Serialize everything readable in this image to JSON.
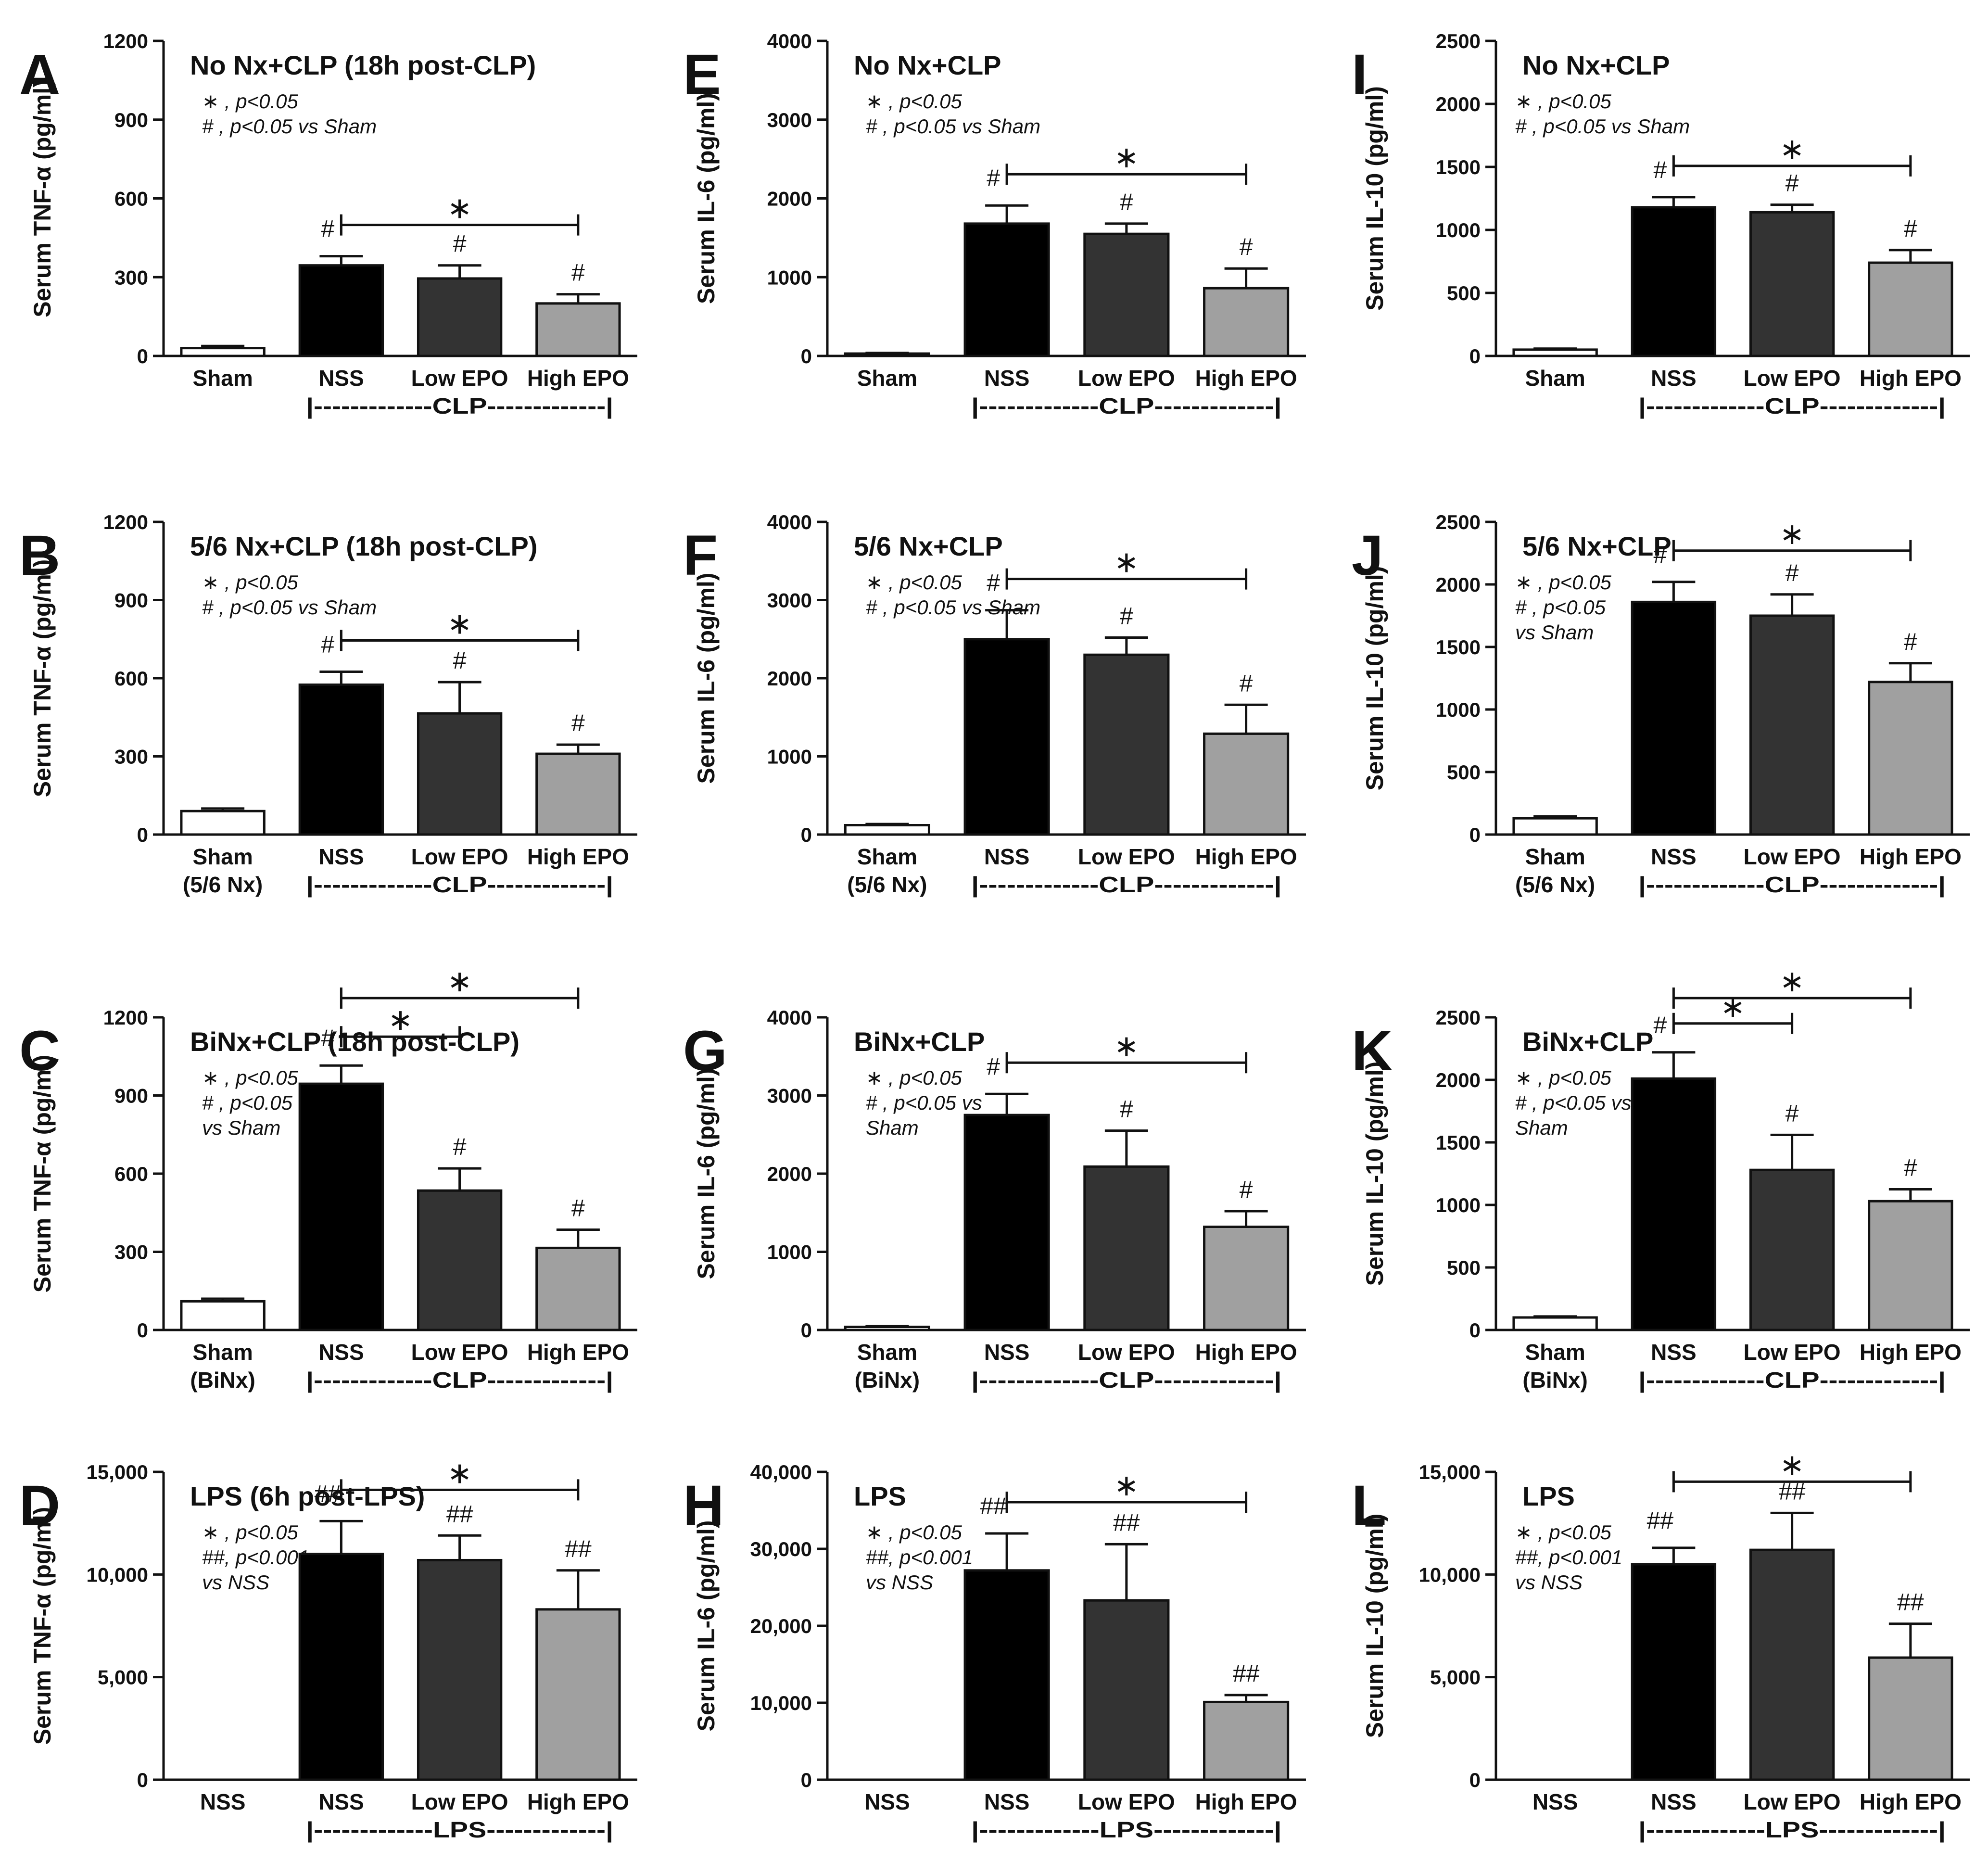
{
  "chart_data": [
    {
      "panel": "A",
      "type": "bar",
      "title": "No Nx+CLP (18h post-CLP)",
      "ylabel": "Serum TNF-α (pg/ml)",
      "ylim": [
        0,
        1200
      ],
      "yticks": [
        "0",
        "300",
        "600",
        "900",
        "1200"
      ],
      "categories": [
        [
          "Sham"
        ],
        [
          "NSS"
        ],
        [
          "Low EPO"
        ],
        [
          "High EPO"
        ]
      ],
      "values": [
        30,
        345,
        295,
        200
      ],
      "errors": [
        8,
        35,
        50,
        35
      ],
      "colors": [
        "#ffffff",
        "#000000",
        "#333333",
        "#a0a0a0"
      ],
      "group_label": "|-------------CLP-------------|",
      "notes": [
        "∗ , p<0.05",
        "# , p<0.05 vs Sham"
      ],
      "bar_marks": [
        "",
        "#",
        "#",
        "#"
      ],
      "brackets": [
        {
          "from": 1,
          "to": 3,
          "label": "∗",
          "level": 1
        }
      ]
    },
    {
      "panel": "B",
      "type": "bar",
      "title": "5/6 Nx+CLP (18h post-CLP)",
      "ylabel": "Serum TNF-α (pg/ml)",
      "ylim": [
        0,
        1200
      ],
      "yticks": [
        "0",
        "300",
        "600",
        "900",
        "1200"
      ],
      "categories": [
        [
          "Sham",
          "(5/6 Nx)"
        ],
        [
          "NSS"
        ],
        [
          "Low EPO"
        ],
        [
          "High EPO"
        ]
      ],
      "values": [
        90,
        575,
        465,
        310
      ],
      "errors": [
        10,
        50,
        120,
        35
      ],
      "colors": [
        "#ffffff",
        "#000000",
        "#333333",
        "#a0a0a0"
      ],
      "group_label": "|-------------CLP-------------|",
      "notes": [
        "∗ , p<0.05",
        "# , p<0.05 vs Sham"
      ],
      "bar_marks": [
        "",
        "#",
        "#",
        "#"
      ],
      "brackets": [
        {
          "from": 1,
          "to": 3,
          "label": "∗",
          "level": 1
        }
      ]
    },
    {
      "panel": "C",
      "type": "bar",
      "title": "BiNx+CLP (18h post-CLP)",
      "ylabel": "Serum TNF-α (pg/ml)",
      "ylim": [
        0,
        1200
      ],
      "yticks": [
        "0",
        "300",
        "600",
        "900",
        "1200"
      ],
      "categories": [
        [
          "Sham",
          "(BiNx)"
        ],
        [
          "NSS"
        ],
        [
          "Low EPO"
        ],
        [
          "High EPO"
        ]
      ],
      "values": [
        110,
        945,
        535,
        315
      ],
      "errors": [
        10,
        70,
        85,
        70
      ],
      "colors": [
        "#ffffff",
        "#000000",
        "#333333",
        "#a0a0a0"
      ],
      "group_label": "|-------------CLP-------------|",
      "notes": [
        "∗ , p<0.05",
        "# , p<0.05",
        "vs Sham"
      ],
      "bar_marks": [
        "",
        "#",
        "#",
        "#"
      ],
      "brackets": [
        {
          "from": 1,
          "to": 2,
          "label": "∗",
          "level": 1
        },
        {
          "from": 1,
          "to": 3,
          "label": "∗",
          "level": 2
        }
      ]
    },
    {
      "panel": "D",
      "type": "bar",
      "title": "LPS (6h post-LPS)",
      "ylabel": "Serum TNF-α (pg/ml)",
      "ylim": [
        0,
        15000
      ],
      "yticks": [
        "0",
        "5,000",
        "10,000",
        "15,000"
      ],
      "categories": [
        [
          "NSS"
        ],
        [
          "NSS"
        ],
        [
          "Low EPO"
        ],
        [
          "High EPO"
        ]
      ],
      "values": [
        0,
        11000,
        10700,
        8300
      ],
      "errors": [
        0,
        1600,
        1200,
        1900
      ],
      "colors": [
        "#ffffff",
        "#000000",
        "#333333",
        "#a0a0a0"
      ],
      "group_label": "|-------------LPS-------------|",
      "notes": [
        "∗ , p<0.05",
        "##, p<0.001",
        "vs NSS"
      ],
      "bar_marks": [
        "",
        "##",
        "##",
        "##"
      ],
      "brackets": [
        {
          "from": 1,
          "to": 3,
          "label": "∗",
          "level": 1
        }
      ]
    },
    {
      "panel": "E",
      "type": "bar",
      "title": "No Nx+CLP",
      "ylabel": "Serum IL-6 (pg/ml)",
      "ylim": [
        0,
        4000
      ],
      "yticks": [
        "0",
        "1000",
        "2000",
        "3000",
        "4000"
      ],
      "categories": [
        [
          "Sham"
        ],
        [
          "NSS"
        ],
        [
          "Low EPO"
        ],
        [
          "High EPO"
        ]
      ],
      "values": [
        30,
        1680,
        1550,
        860
      ],
      "errors": [
        8,
        230,
        130,
        250
      ],
      "colors": [
        "#ffffff",
        "#000000",
        "#333333",
        "#a0a0a0"
      ],
      "group_label": "|-------------CLP-------------|",
      "notes": [
        "∗ , p<0.05",
        "# , p<0.05 vs Sham"
      ],
      "bar_marks": [
        "",
        "#",
        "#",
        "#"
      ],
      "brackets": [
        {
          "from": 1,
          "to": 3,
          "label": "∗",
          "level": 1
        }
      ]
    },
    {
      "panel": "F",
      "type": "bar",
      "title": "5/6 Nx+CLP",
      "ylabel": "Serum IL-6 (pg/ml)",
      "ylim": [
        0,
        4000
      ],
      "yticks": [
        "0",
        "1000",
        "2000",
        "3000",
        "4000"
      ],
      "categories": [
        [
          "Sham",
          "(5/6 Nx)"
        ],
        [
          "NSS"
        ],
        [
          "Low EPO"
        ],
        [
          "High EPO"
        ]
      ],
      "values": [
        120,
        2500,
        2300,
        1290
      ],
      "errors": [
        15,
        370,
        220,
        370
      ],
      "colors": [
        "#ffffff",
        "#000000",
        "#333333",
        "#a0a0a0"
      ],
      "group_label": "|-------------CLP-------------|",
      "notes": [
        "∗ , p<0.05",
        "# , p<0.05 vs Sham"
      ],
      "bar_marks": [
        "",
        "#",
        "#",
        "#"
      ],
      "brackets": [
        {
          "from": 1,
          "to": 3,
          "label": "∗",
          "level": 1
        }
      ]
    },
    {
      "panel": "G",
      "type": "bar",
      "title": "BiNx+CLP",
      "ylabel": "Serum IL-6 (pg/ml)",
      "ylim": [
        0,
        4000
      ],
      "yticks": [
        "0",
        "1000",
        "2000",
        "3000",
        "4000"
      ],
      "categories": [
        [
          "Sham",
          "(BiNx)"
        ],
        [
          "NSS"
        ],
        [
          "Low EPO"
        ],
        [
          "High EPO"
        ]
      ],
      "values": [
        40,
        2750,
        2090,
        1320
      ],
      "errors": [
        8,
        270,
        460,
        200
      ],
      "colors": [
        "#ffffff",
        "#000000",
        "#333333",
        "#a0a0a0"
      ],
      "group_label": "|-------------CLP-------------|",
      "notes": [
        "∗ , p<0.05",
        "# , p<0.05 vs",
        "Sham"
      ],
      "bar_marks": [
        "",
        "#",
        "#",
        "#"
      ],
      "brackets": [
        {
          "from": 1,
          "to": 3,
          "label": "∗",
          "level": 1
        }
      ]
    },
    {
      "panel": "H",
      "type": "bar",
      "title": "LPS",
      "ylabel": "Serum IL-6 (pg/ml)",
      "ylim": [
        0,
        40000
      ],
      "yticks": [
        "0",
        "10,000",
        "20,000",
        "30,000",
        "40,000"
      ],
      "categories": [
        [
          "NSS"
        ],
        [
          "NSS"
        ],
        [
          "Low EPO"
        ],
        [
          "High EPO"
        ]
      ],
      "values": [
        0,
        27200,
        23300,
        10100
      ],
      "errors": [
        0,
        4800,
        7300,
        900
      ],
      "colors": [
        "#ffffff",
        "#000000",
        "#333333",
        "#a0a0a0"
      ],
      "group_label": "|-------------LPS-------------|",
      "notes": [
        "∗ , p<0.05",
        "##, p<0.001",
        "vs NSS"
      ],
      "bar_marks": [
        "",
        "##",
        "##",
        "##"
      ],
      "brackets": [
        {
          "from": 1,
          "to": 3,
          "label": "∗",
          "level": 1
        }
      ]
    },
    {
      "panel": "I",
      "type": "bar",
      "title": "No Nx+CLP",
      "ylabel": "Serum IL-10 (pg/ml)",
      "ylim": [
        0,
        2500
      ],
      "yticks": [
        "0",
        "500",
        "1000",
        "1500",
        "2000",
        "2500"
      ],
      "categories": [
        [
          "Sham"
        ],
        [
          "NSS"
        ],
        [
          "Low EPO"
        ],
        [
          "High EPO"
        ]
      ],
      "values": [
        50,
        1180,
        1140,
        740
      ],
      "errors": [
        8,
        80,
        60,
        100
      ],
      "colors": [
        "#ffffff",
        "#000000",
        "#333333",
        "#a0a0a0"
      ],
      "group_label": "|-------------CLP-------------|",
      "notes": [
        "∗ , p<0.05",
        "# , p<0.05 vs Sham"
      ],
      "bar_marks": [
        "",
        "#",
        "#",
        "#"
      ],
      "brackets": [
        {
          "from": 1,
          "to": 3,
          "label": "∗",
          "level": 1
        }
      ]
    },
    {
      "panel": "J",
      "type": "bar",
      "title": "5/6 Nx+CLP",
      "ylabel": "Serum IL-10 (pg/ml)",
      "ylim": [
        0,
        2500
      ],
      "yticks": [
        "0",
        "500",
        "1000",
        "1500",
        "2000",
        "2500"
      ],
      "categories": [
        [
          "Sham",
          "(5/6 Nx)"
        ],
        [
          "NSS"
        ],
        [
          "Low EPO"
        ],
        [
          "High EPO"
        ]
      ],
      "values": [
        130,
        1860,
        1750,
        1220
      ],
      "errors": [
        15,
        160,
        170,
        150
      ],
      "colors": [
        "#ffffff",
        "#000000",
        "#333333",
        "#a0a0a0"
      ],
      "group_label": "|-------------CLP-------------|",
      "notes": [
        "∗ , p<0.05",
        "# , p<0.05",
        "vs Sham"
      ],
      "bar_marks": [
        "",
        "#",
        "#",
        "#"
      ],
      "brackets": [
        {
          "from": 1,
          "to": 3,
          "label": "∗",
          "level": 1
        }
      ]
    },
    {
      "panel": "K",
      "type": "bar",
      "title": "BiNx+CLP",
      "ylabel": "Serum IL-10 (pg/ml)",
      "ylim": [
        0,
        2500
      ],
      "yticks": [
        "0",
        "500",
        "1000",
        "1500",
        "2000",
        "2500"
      ],
      "categories": [
        [
          "Sham",
          "(BiNx)"
        ],
        [
          "NSS"
        ],
        [
          "Low EPO"
        ],
        [
          "High EPO"
        ]
      ],
      "values": [
        100,
        2010,
        1280,
        1030
      ],
      "errors": [
        8,
        210,
        280,
        95
      ],
      "colors": [
        "#ffffff",
        "#000000",
        "#333333",
        "#a0a0a0"
      ],
      "group_label": "|-------------CLP-------------|",
      "notes": [
        "∗ , p<0.05",
        "# , p<0.05 vs",
        "Sham"
      ],
      "bar_marks": [
        "",
        "#",
        "#",
        "#"
      ],
      "brackets": [
        {
          "from": 1,
          "to": 2,
          "label": "∗",
          "level": 1
        },
        {
          "from": 1,
          "to": 3,
          "label": "∗",
          "level": 2
        }
      ]
    },
    {
      "panel": "L",
      "type": "bar",
      "title": "LPS",
      "ylabel": "Serum IL-10 (pg/ml)",
      "ylim": [
        0,
        15000
      ],
      "yticks": [
        "0",
        "5,000",
        "10,000",
        "15,000"
      ],
      "categories": [
        [
          "NSS"
        ],
        [
          "NSS"
        ],
        [
          "Low EPO"
        ],
        [
          "High EPO"
        ]
      ],
      "values": [
        0,
        10500,
        11200,
        5950
      ],
      "errors": [
        0,
        800,
        1800,
        1650
      ],
      "colors": [
        "#ffffff",
        "#000000",
        "#333333",
        "#a0a0a0"
      ],
      "group_label": "|-------------LPS-------------|",
      "notes": [
        "∗ , p<0.05",
        "##, p<0.001",
        "vs NSS"
      ],
      "bar_marks": [
        "",
        "##",
        "##",
        "##"
      ],
      "brackets": [
        {
          "from": 1,
          "to": 3,
          "label": "∗",
          "level": 1
        }
      ]
    }
  ]
}
